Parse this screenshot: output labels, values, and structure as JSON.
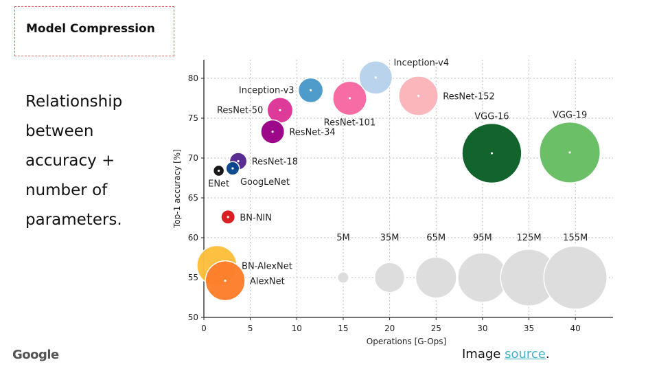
{
  "slide": {
    "title": "Model Compression",
    "description_lines": [
      "Relationship",
      "between",
      "accuracy +",
      "number of",
      "parameters."
    ],
    "logo": "Google",
    "credit_prefix": "Image ",
    "credit_link": "source",
    "credit_suffix": "."
  },
  "chart_data": {
    "type": "scatter",
    "title": "",
    "xlabel": "Operations [G-Ops]",
    "ylabel": "Top-1 accuracy [%]",
    "xlim": [
      0,
      44
    ],
    "ylim": [
      50,
      82
    ],
    "xticks": [
      0,
      5,
      10,
      15,
      20,
      25,
      30,
      35,
      40
    ],
    "yticks": [
      50,
      55,
      60,
      65,
      70,
      75,
      80
    ],
    "grid": true,
    "points": [
      {
        "name": "AlexNet",
        "ops": 2.3,
        "acc": 54.6,
        "params_m": 61,
        "color": "#fd7f2c",
        "label_side": "right"
      },
      {
        "name": "BN-AlexNet",
        "ops": 1.4,
        "acc": 56.5,
        "params_m": 62,
        "color": "#fdbf3c",
        "label_side": "right"
      },
      {
        "name": "BN-NIN",
        "ops": 2.6,
        "acc": 62.6,
        "params_m": 7.6,
        "color": "#d7191c",
        "label_side": "right"
      },
      {
        "name": "ENet",
        "ops": 1.6,
        "acc": 68.4,
        "params_m": 0.4,
        "color": "#111111",
        "label_side": "below"
      },
      {
        "name": "GoogLeNet",
        "ops": 3.1,
        "acc": 68.7,
        "params_m": 7,
        "color": "#08468b",
        "label_side": "below-right"
      },
      {
        "name": "ResNet-18",
        "ops": 3.7,
        "acc": 69.6,
        "params_m": 11.7,
        "color": "#54278f",
        "label_side": "right"
      },
      {
        "name": "ResNet-34",
        "ops": 7.4,
        "acc": 73.3,
        "params_m": 21.8,
        "color": "#9a0087",
        "label_side": "right"
      },
      {
        "name": "ResNet-50",
        "ops": 8.2,
        "acc": 76.0,
        "params_m": 25.6,
        "color": "#dd3497",
        "label_side": "left"
      },
      {
        "name": "ResNet-101",
        "ops": 15.7,
        "acc": 77.5,
        "params_m": 44.5,
        "color": "#f768a1",
        "label_side": "below"
      },
      {
        "name": "ResNet-152",
        "ops": 23.1,
        "acc": 77.8,
        "params_m": 60.2,
        "color": "#fbb4b9",
        "label_side": "right"
      },
      {
        "name": "Inception-v3",
        "ops": 11.5,
        "acc": 78.5,
        "params_m": 23.8,
        "color": "#4a98c9",
        "label_side": "left"
      },
      {
        "name": "Inception-v4",
        "ops": 18.5,
        "acc": 80.1,
        "params_m": 42.7,
        "color": "#b8d2ec",
        "label_side": "above-right"
      },
      {
        "name": "VGG-16",
        "ops": 31.0,
        "acc": 70.6,
        "params_m": 138,
        "color": "#0b5f26",
        "label_side": "above"
      },
      {
        "name": "VGG-19",
        "ops": 39.4,
        "acc": 70.7,
        "params_m": 143.7,
        "color": "#66bd63",
        "label_side": "above"
      }
    ],
    "size_legend": [
      {
        "label": "5M",
        "ops": 15,
        "params_m": 5
      },
      {
        "label": "35M",
        "ops": 20,
        "params_m": 35
      },
      {
        "label": "65M",
        "ops": 25,
        "params_m": 65
      },
      {
        "label": "95M",
        "ops": 30,
        "params_m": 95
      },
      {
        "label": "125M",
        "ops": 35,
        "params_m": 125
      },
      {
        "label": "155M",
        "ops": 40,
        "params_m": 155
      }
    ],
    "size_legend_acc": 55,
    "legend_color": "#dddddd"
  }
}
